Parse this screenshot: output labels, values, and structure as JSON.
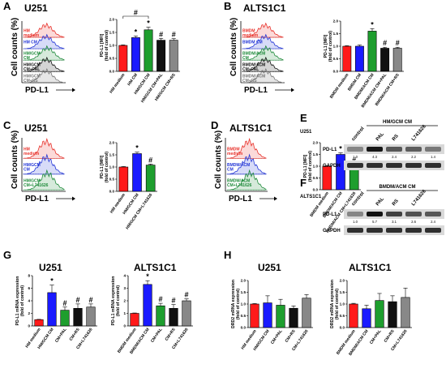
{
  "panels": {
    "A": {
      "letter": "A",
      "cell_line": "U251",
      "flow": {
        "ylabel": "Cell counts (%)",
        "xlabel": "PD-L1",
        "tick_labels": [
          "10⁰",
          "10⁵",
          "10¹⁰",
          "10⁰",
          "10⁵",
          "10¹⁰"
        ],
        "traces": [
          {
            "label": "HM\nmedium",
            "color": "#e8312a"
          },
          {
            "label": "HM CM",
            "color": "#2235d6"
          },
          {
            "label": "HM/GCM\nCM",
            "color": "#1e8a3a"
          },
          {
            "label": "HM/GCM\nCM+PAL",
            "color": "#111111"
          },
          {
            "label": "HM/GCM\nCM+RS",
            "color": "#777777"
          }
        ]
      },
      "chart_data": {
        "type": "bar",
        "categories": [
          "HM medium",
          "HM CM",
          "HM/GCM CM",
          "HM/GCM CM+PAL",
          "HM/GCM CM+RS"
        ],
        "values": [
          1.0,
          1.3,
          1.6,
          1.2,
          1.2
        ],
        "errors": [
          0.02,
          0.06,
          0.1,
          0.07,
          0.06
        ],
        "colors": [
          "#ff1a1a",
          "#1a1aff",
          "#1e9e2e",
          "#111111",
          "#888888"
        ],
        "ylabel": "PD-L1 [MFI]\n(fold of control)",
        "ylim": [
          0,
          2.0
        ],
        "yticks": [
          "0.0",
          "0.5",
          "1.0",
          "1.5",
          "2.0"
        ],
        "marks": [
          "",
          "*",
          "*",
          "#",
          "#"
        ],
        "bracket_mark": "#"
      }
    },
    "B": {
      "letter": "B",
      "cell_line": "ALTS1C1",
      "flow": {
        "ylabel": "Cell counts (%)",
        "xlabel": "PD-L1",
        "traces": [
          {
            "label": "BMDM\nmedium",
            "color": "#e8312a"
          },
          {
            "label": "BMDM CM",
            "color": "#2235d6"
          },
          {
            "label": "BMDM/ACM\nCM",
            "color": "#1e8a3a"
          },
          {
            "label": "BMDM/ACM\nCM+PAL",
            "color": "#111111"
          },
          {
            "label": "BMDM/ACM\nCM+RS",
            "color": "#777777"
          }
        ]
      },
      "chart_data": {
        "type": "bar",
        "categories": [
          "BMDM medium",
          "BMDM CM",
          "BMDM/ACM CM",
          "BMDM/ACM CM+PAL",
          "BMDM/ACM CM+RS"
        ],
        "values": [
          1.0,
          1.0,
          1.6,
          0.92,
          0.92
        ],
        "errors": [
          0.02,
          0.05,
          0.1,
          0.04,
          0.04
        ],
        "colors": [
          "#ff1a1a",
          "#1a1aff",
          "#1e9e2e",
          "#111111",
          "#888888"
        ],
        "ylabel": "PD-L1 [MFI]\n(fold of control)",
        "ylim": [
          0,
          2.0
        ],
        "yticks": [
          "0.0",
          "0.5",
          "1.0",
          "1.5",
          "2.0"
        ],
        "marks": [
          "",
          "",
          "*",
          "#",
          "#"
        ]
      }
    },
    "C": {
      "letter": "C",
      "cell_line": "U251",
      "flow": {
        "ylabel": "Cell counts (%)",
        "xlabel": "PD-L1",
        "traces": [
          {
            "label": "HM\nmedium",
            "color": "#e8312a"
          },
          {
            "label": "HM/GCM\nCM",
            "color": "#2235d6"
          },
          {
            "label": "HM/GCM\nCM+L741626",
            "color": "#1e8a3a"
          }
        ]
      },
      "chart_data": {
        "type": "bar",
        "categories": [
          "HM medium",
          "HM/GCM CM",
          "HM/GCM CM+L741626"
        ],
        "values": [
          1.0,
          1.55,
          1.08
        ],
        "errors": [
          0.02,
          0.06,
          0.04
        ],
        "colors": [
          "#ff1a1a",
          "#1a1aff",
          "#1e9e2e"
        ],
        "ylabel": "PD-L1 [MFI]\n(fold of control)",
        "ylim": [
          0,
          2.0
        ],
        "yticks": [
          "0.0",
          "0.5",
          "1.0",
          "1.5",
          "2.0"
        ],
        "marks": [
          "",
          "*",
          "#"
        ]
      }
    },
    "D": {
      "letter": "D",
      "cell_line": "ALTS1C1",
      "flow": {
        "ylabel": "Cell counts (%)",
        "xlabel": "PD-L1",
        "traces": [
          {
            "label": "BMDM\nmedium",
            "color": "#e8312a"
          },
          {
            "label": "BMDM/ACM\nCM",
            "color": "#2235d6"
          },
          {
            "label": "BMDM/ACM\nCM+L741626",
            "color": "#1e8a3a"
          }
        ]
      },
      "chart_data": {
        "type": "bar",
        "categories": [
          "BMDM medium",
          "BMDM/ACM CM",
          "BMDM/ACM CM+L741626"
        ],
        "values": [
          1.0,
          1.5,
          1.05
        ],
        "errors": [
          0.02,
          0.07,
          0.03
        ],
        "colors": [
          "#ff1a1a",
          "#1a1aff",
          "#1e9e2e"
        ],
        "ylabel": "PD-L1 [MFI]\n(fold of control)",
        "ylim": [
          0,
          2.0
        ],
        "yticks": [
          "0.0",
          "0.5",
          "1.0",
          "1.5",
          "2.0"
        ],
        "marks": [
          "",
          "*",
          "#"
        ]
      }
    },
    "E": {
      "letter": "E",
      "cell_line": "U251",
      "group_label": "HM/GCM CM",
      "lanes": [
        "control",
        "PAL",
        "RS",
        "L741626"
      ],
      "rows": [
        "PD-L1",
        "GAPDH"
      ],
      "fold_values": [
        "1.0",
        "4.3",
        "2.4",
        "2.2",
        "1.4"
      ],
      "fold_unit": "(fold)"
    },
    "F": {
      "letter": "F",
      "cell_line": "ALTS1C1",
      "group_label": "BMDM/ACM CM",
      "lanes": [
        "control",
        "PAL",
        "RS",
        "L741626"
      ],
      "rows": [
        "PD-L1",
        "GAPDH"
      ],
      "fold_values": [
        "1.0",
        "5.7",
        "3.1",
        "2.6",
        "2.4"
      ],
      "fold_unit": "(fold)"
    },
    "G": {
      "letter": "G",
      "charts": [
        {
          "cell_line": "U251",
          "chart_data": {
            "type": "bar",
            "categories": [
              "HM medium",
              "HM/GCM CM",
              "CM+PAL",
              "CM+RS",
              "CM+L741626"
            ],
            "values": [
              1.0,
              5.3,
              2.5,
              2.8,
              3.0
            ],
            "errors": [
              0.05,
              1.2,
              0.5,
              0.7,
              0.5
            ],
            "colors": [
              "#ff1a1a",
              "#1a1aff",
              "#1e9e2e",
              "#111111",
              "#888888"
            ],
            "ylabel": "PD-L1 mRNA expression\n(fold of control)",
            "ylim": [
              0,
              8
            ],
            "yticks": [
              "0",
              "2",
              "4",
              "6",
              "8"
            ],
            "marks": [
              "",
              "*",
              "#",
              "#",
              "#"
            ]
          }
        },
        {
          "cell_line": "ALTS1C1",
          "chart_data": {
            "type": "bar",
            "categories": [
              "BMDM medium",
              "BMDM/ACM CM",
              "CM+PAL",
              "CM+RS",
              "CM+L741626"
            ],
            "values": [
              1.0,
              3.3,
              1.6,
              1.4,
              2.0
            ],
            "errors": [
              0.03,
              0.3,
              0.2,
              0.3,
              0.15
            ],
            "colors": [
              "#ff1a1a",
              "#1a1aff",
              "#1e9e2e",
              "#111111",
              "#888888"
            ],
            "ylabel": "PD-L1 mRNA expression\n(fold of control)",
            "ylim": [
              0,
              4
            ],
            "yticks": [
              "0",
              "1",
              "2",
              "3",
              "4"
            ],
            "marks": [
              "",
              "*",
              "#",
              "#",
              "#"
            ]
          }
        }
      ]
    },
    "H": {
      "letter": "H",
      "charts": [
        {
          "cell_line": "U251",
          "chart_data": {
            "type": "bar",
            "categories": [
              "HM medium",
              "HM/GCM CM",
              "CM+PAL",
              "CM+RS",
              "CM+L741626"
            ],
            "values": [
              1.0,
              1.05,
              0.95,
              0.82,
              1.25
            ],
            "errors": [
              0.02,
              0.3,
              0.25,
              0.1,
              0.15
            ],
            "colors": [
              "#ff1a1a",
              "#1a1aff",
              "#1e9e2e",
              "#111111",
              "#888888"
            ],
            "ylabel": "DRD2 mRNA expression\n(fold of control)",
            "ylim": [
              0,
              2.0
            ],
            "yticks": [
              "0.0",
              "0.5",
              "1.0",
              "1.5",
              "2.0"
            ],
            "marks": [
              "",
              "",
              "",
              "",
              ""
            ]
          }
        },
        {
          "cell_line": "ALTS1C1",
          "chart_data": {
            "type": "bar",
            "categories": [
              "BMDM medium",
              "BMDM/ACM CM",
              "CM+PAL",
              "CM+RS",
              "CM+L741626"
            ],
            "values": [
              1.0,
              0.8,
              1.15,
              1.1,
              1.28
            ],
            "errors": [
              0.03,
              0.15,
              0.3,
              0.25,
              0.4
            ],
            "colors": [
              "#ff1a1a",
              "#1a1aff",
              "#1e9e2e",
              "#111111",
              "#888888"
            ],
            "ylabel": "DRD2 mRNA expression\n(fold of control)",
            "ylim": [
              0,
              2.0
            ],
            "yticks": [
              "0.0",
              "0.5",
              "1.0",
              "1.5",
              "2.0"
            ],
            "marks": [
              "",
              "",
              "",
              "",
              ""
            ]
          }
        }
      ]
    }
  }
}
